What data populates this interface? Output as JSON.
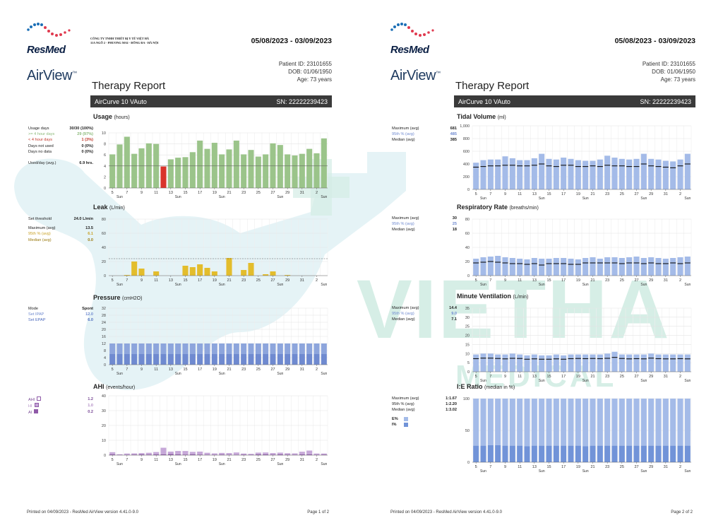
{
  "report": {
    "company_lines": [
      "CÔNG TY TNHH THIẾT BỊ Y TẾ VIỆT HÀ",
      "11A NGÕ 2 - PHƯƠNG MAI - ĐỐNG ĐA - HÀ NỘI"
    ],
    "brand": "ResMed",
    "product": "AirView",
    "product_tm": "™",
    "date_range": "05/08/2023 - 03/09/2023",
    "patient_id": "Patient ID: 23101655",
    "dob": "DOB: 01/06/1950",
    "age": "Age: 73 years",
    "title": "Therapy Report",
    "device": "AirCurve 10 VAuto",
    "serial": "SN: 22222239423",
    "footer_printed": "Printed on 04/09/2023 - ResMed AirView version 4.41.0-9.0",
    "page1": "Page 1 of 2",
    "page2": "Page 2 of 2"
  },
  "watermark": {
    "main": "VIETHA",
    "sub": "MEDICAL"
  },
  "axis": {
    "ticks": [
      "5",
      "7",
      "9",
      "11",
      "13",
      "15",
      "17",
      "19",
      "21",
      "23",
      "25",
      "27",
      "29",
      "31",
      "2"
    ],
    "sun_labels": [
      "Sun",
      "Sun",
      "Sun",
      "Sun",
      "Sun"
    ]
  },
  "colors": {
    "usage": "#9bc48a",
    "usage_short": "#d9342b",
    "leak": "#e3bd2c",
    "pressure_ipap": "#8da5dc",
    "pressure_epap": "#6f8ad0",
    "ahi": "#c6a8d8",
    "ai": "#8f5aa8",
    "blue": "#a4bbe8",
    "blue_dark": "#7193d8"
  },
  "usage": {
    "title": "Usage",
    "unit": "(hours)",
    "stats": [
      {
        "label": "Usage days",
        "value": "30/30 (100%)",
        "color": "#222"
      },
      {
        "label": ">= 4 hour days",
        "value": "29 (97%)",
        "color": "#8dba7b"
      },
      {
        "label": "< 4 hour days",
        "value": "1 (3%)",
        "color": "#c0392b"
      },
      {
        "label": "Days not used",
        "value": "0 (0%)",
        "color": "#222"
      },
      {
        "label": "Days no data",
        "value": "0 (0%)",
        "color": "#222"
      },
      {
        "label": "Used/day (avg.)",
        "value": "6.9 hrs.",
        "color": "#222"
      }
    ]
  },
  "leak": {
    "title": "Leak",
    "unit": "(L/min)",
    "stats": [
      {
        "label": "Set threshold",
        "value": "24.0 L/min",
        "color": "#222"
      },
      {
        "label": "Maximum (avg)",
        "value": "13.5",
        "color": "#222"
      },
      {
        "label": "95th % (avg)",
        "value": "6.1",
        "color": "#c9a227"
      },
      {
        "label": "Median (avg)",
        "value": "0.0",
        "color": "#9a7a10"
      }
    ]
  },
  "pressure": {
    "title": "Pressure",
    "unit": "(cmH2O)",
    "stats": [
      {
        "label": "Mode",
        "value": "Spont",
        "color": "#222"
      },
      {
        "label": "Set IPAP",
        "value": "12.0",
        "color": "#6f8ad0"
      },
      {
        "label": "Set EPAP",
        "value": "6.0",
        "color": "#4d6bbd"
      }
    ]
  },
  "ahi": {
    "title": "AHI",
    "unit": "(events/hour)",
    "stats": [
      {
        "label": "AHI",
        "value": "1.2",
        "color": "#7a4a96"
      },
      {
        "label": "HI",
        "value": "1.0",
        "color": "#b08ac4"
      },
      {
        "label": "AI",
        "value": "0.2",
        "color": "#7a4a96"
      }
    ]
  },
  "tidal": {
    "title": "Tidal Volume",
    "unit": "(ml)",
    "stats": [
      {
        "label": "Maximum (avg)",
        "value": "681",
        "color": "#222"
      },
      {
        "label": "95th % (avg)",
        "value": "485",
        "color": "#6f8ad0"
      },
      {
        "label": "Median (avg)",
        "value": "385",
        "color": "#222"
      }
    ]
  },
  "resp": {
    "title": "Respiratory Rate",
    "unit": "(breaths/min)",
    "stats": [
      {
        "label": "Maximum (avg)",
        "value": "30",
        "color": "#222"
      },
      {
        "label": "95th % (avg)",
        "value": "25",
        "color": "#6f8ad0"
      },
      {
        "label": "Median (avg)",
        "value": "18",
        "color": "#222"
      }
    ]
  },
  "minvent": {
    "title": "Minute Ventilation",
    "unit": "(L/min)",
    "stats": [
      {
        "label": "Maximum (avg)",
        "value": "14.4",
        "color": "#222"
      },
      {
        "label": "95th % (avg)",
        "value": "9.0",
        "color": "#6f8ad0"
      },
      {
        "label": "Median (avg)",
        "value": "7.1",
        "color": "#222"
      }
    ]
  },
  "ie": {
    "title": "I:E Ratio",
    "unit": "(median in %)",
    "stats": [
      {
        "label": "Maximum (avg)",
        "value": "1:1.67",
        "color": "#222"
      },
      {
        "label": "95th % (avg)",
        "value": "1:2.20",
        "color": "#222"
      },
      {
        "label": "Median (avg)",
        "value": "1:3.02",
        "color": "#222"
      }
    ],
    "legend": [
      {
        "label": "E%",
        "color": "#a4bbe8"
      },
      {
        "label": "I%",
        "color": "#7193d8"
      }
    ]
  },
  "chart_data": [
    {
      "id": "usage",
      "type": "bar",
      "title": "Usage",
      "ylabel": "hours",
      "ylim": [
        0,
        10
      ],
      "yticks": [
        0,
        2,
        4,
        6,
        8,
        10
      ],
      "values": [
        6.1,
        7.9,
        9.3,
        6.2,
        7.2,
        8.1,
        8.0,
        3.9,
        5.2,
        5.5,
        5.6,
        6.5,
        8.6,
        7.1,
        8.2,
        6.1,
        7.0,
        8.6,
        6.1,
        6.9,
        5.7,
        6.1,
        8.1,
        7.8,
        6.1,
        5.9,
        6.2,
        7.1,
        6.3,
        9.0
      ],
      "threshold": 4
    },
    {
      "id": "leak",
      "type": "bar",
      "title": "Leak",
      "ylabel": "L/min",
      "ylim": [
        0,
        80
      ],
      "yticks": [
        0,
        20,
        40,
        60,
        80
      ],
      "values": [
        0,
        0,
        1,
        20,
        10,
        0,
        6,
        0,
        0,
        0,
        14,
        12,
        16,
        11,
        6,
        0,
        25,
        0,
        8,
        18,
        0,
        2,
        6,
        0,
        1,
        0,
        0,
        0,
        0,
        0
      ],
      "threshold": 24
    },
    {
      "id": "pressure",
      "type": "stacked_bar",
      "title": "Pressure",
      "ylabel": "cmH2O",
      "ylim": [
        0,
        32
      ],
      "yticks": [
        0,
        4,
        8,
        12,
        16,
        20,
        24,
        28,
        32
      ],
      "series": [
        {
          "name": "EPAP",
          "value": 6
        },
        {
          "name": "IPAP",
          "value": 12
        }
      ]
    },
    {
      "id": "ahi",
      "type": "stacked_bar",
      "title": "AHI",
      "ylabel": "events/hour",
      "ylim": [
        0,
        40
      ],
      "yticks": [
        0,
        10,
        20,
        30,
        40
      ],
      "series": [
        {
          "name": "AI",
          "values": [
            0.6,
            0.2,
            0.2,
            0.4,
            0.5,
            0.4,
            0.5,
            0.6,
            0.7,
            0.5,
            0.4,
            0.6,
            0.4,
            0.3,
            0.3,
            0.4,
            0.3,
            0.2,
            0.4,
            0.3,
            0.5,
            0.5,
            0.4,
            0.5,
            0.4,
            0.3,
            0.5,
            0.6,
            0.3,
            0.4
          ]
        },
        {
          "name": "HI",
          "values": [
            1.4,
            0.4,
            0.9,
            0.8,
            0.9,
            1.2,
            1.6,
            4.4,
            1.7,
            2.3,
            2.4,
            1.6,
            2.0,
            1.3,
            0.9,
            1.1,
            1.1,
            1.6,
            0.7,
            0.6,
            1.2,
            1.3,
            1.0,
            1.2,
            0.9,
            0.9,
            1.8,
            2.5,
            0.8,
            0.7
          ]
        }
      ]
    },
    {
      "id": "tidal",
      "type": "bar_with_median",
      "title": "Tidal Volume",
      "ylabel": "ml",
      "ylim": [
        0,
        1000
      ],
      "yticks": [
        0,
        200,
        400,
        600,
        800,
        1000
      ],
      "values": [
        420,
        460,
        470,
        470,
        520,
        490,
        460,
        460,
        490,
        560,
        480,
        470,
        500,
        480,
        460,
        450,
        450,
        470,
        530,
        500,
        480,
        470,
        480,
        560,
        480,
        470,
        450,
        440,
        470,
        560
      ],
      "median": [
        350,
        360,
        370,
        370,
        380,
        380,
        370,
        370,
        380,
        400,
        370,
        360,
        380,
        380,
        360,
        360,
        370,
        360,
        380,
        370,
        370,
        360,
        360,
        400,
        370,
        360,
        350,
        340,
        370,
        400
      ]
    },
    {
      "id": "resp",
      "type": "bar_with_median",
      "title": "Respiratory Rate",
      "ylabel": "breaths/min",
      "ylim": [
        0,
        80
      ],
      "yticks": [
        0,
        20,
        40,
        60,
        80
      ],
      "values": [
        24,
        26,
        27,
        28,
        26,
        25,
        24,
        23,
        25,
        24,
        24,
        25,
        25,
        24,
        23,
        25,
        26,
        24,
        26,
        26,
        25,
        26,
        27,
        25,
        26,
        25,
        24,
        25,
        26,
        27
      ],
      "median": [
        18,
        19,
        20,
        19,
        18,
        17,
        17,
        16,
        17,
        15,
        17,
        17,
        17,
        16,
        16,
        18,
        18,
        18,
        18,
        18,
        17,
        18,
        18,
        17,
        18,
        17,
        17,
        18,
        17,
        18
      ]
    },
    {
      "id": "minvent",
      "type": "bar_with_median",
      "title": "Minute Ventilation",
      "ylabel": "L/min",
      "ylim": [
        0,
        35
      ],
      "yticks": [
        0,
        5,
        10,
        15,
        20,
        25,
        30,
        35
      ],
      "values": [
        9.5,
        10,
        10,
        9.5,
        9.5,
        10,
        9.5,
        9,
        9.5,
        9,
        9,
        9.5,
        9,
        9.5,
        9.5,
        9.5,
        9.5,
        9.5,
        10,
        11,
        9.5,
        9.5,
        9.5,
        9.5,
        10,
        9.5,
        9.5,
        9.5,
        9.5,
        9.5
      ],
      "median": [
        7.2,
        7.5,
        7.5,
        7.3,
        7.1,
        7.4,
        7.3,
        6.9,
        7.1,
        6.9,
        6.9,
        7.1,
        6.9,
        7.2,
        7.3,
        7.2,
        7.3,
        7.2,
        7.4,
        7.9,
        7.3,
        7.1,
        7.2,
        7.1,
        7.5,
        7.2,
        7.1,
        7.1,
        7.2,
        7.1
      ]
    },
    {
      "id": "ie",
      "type": "stacked_bar",
      "title": "I:E Ratio",
      "ylabel": "median in %",
      "ylim": [
        0,
        100
      ],
      "yticks": [
        0,
        50,
        100
      ],
      "series": [
        {
          "name": "I%",
          "values": [
            26,
            26,
            27,
            27,
            26,
            26,
            26,
            25,
            26,
            26,
            26,
            26,
            26,
            26,
            26,
            25,
            26,
            26,
            26,
            26,
            26,
            26,
            26,
            26,
            26,
            26,
            26,
            26,
            26,
            26
          ]
        },
        {
          "name": "E%",
          "values": [
            74,
            74,
            73,
            73,
            74,
            74,
            74,
            75,
            74,
            74,
            74,
            74,
            74,
            74,
            74,
            75,
            74,
            74,
            74,
            74,
            74,
            74,
            74,
            74,
            74,
            74,
            74,
            74,
            74,
            74
          ]
        }
      ]
    }
  ]
}
